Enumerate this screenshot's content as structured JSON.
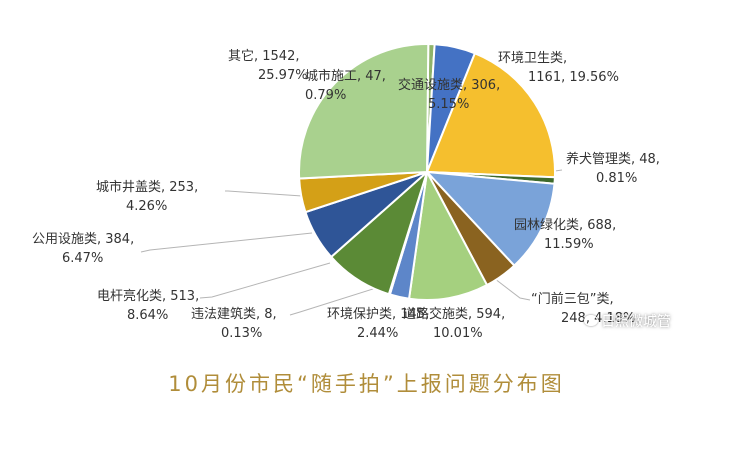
{
  "chart_data": {
    "type": "pie",
    "title": "10月份市民“随手拍”上报问题分布图",
    "slices": [
      {
        "name": "城市施工",
        "value": 47,
        "percent_label": "0.79%",
        "color": "#8fb36a"
      },
      {
        "name": "交通设施类",
        "value": 306,
        "percent_label": "5.15%",
        "color": "#4472c4"
      },
      {
        "name": "环境卫生类",
        "value": 1161,
        "percent_label": "19.56%",
        "color": "#f5bf2e"
      },
      {
        "name": "养犬管理类",
        "value": 48,
        "percent_label": "0.81%",
        "color": "#3f6a2b"
      },
      {
        "name": "园林绿化类",
        "value": 688,
        "percent_label": "11.59%",
        "color": "#7aa3d9"
      },
      {
        "name": "“门前三包”类",
        "value": 248,
        "percent_label": "4.18%",
        "color": "#8a6320"
      },
      {
        "name": "道路交施类",
        "value": 594,
        "percent_label": "10.01%",
        "color": "#a5d07f"
      },
      {
        "name": "环境保护类",
        "value": 145,
        "percent_label": "2.44%",
        "color": "#5d86c9"
      },
      {
        "name": "违法建筑类",
        "value": 8,
        "percent_label": "0.13%",
        "color": "#79a857"
      },
      {
        "name": "电杆亮化类",
        "value": 513,
        "percent_label": "8.64%",
        "color": "#5b8a36"
      },
      {
        "name": "公用设施类",
        "value": 384,
        "percent_label": "6.47%",
        "color": "#2f5597"
      },
      {
        "name": "城市井盖类",
        "value": 253,
        "percent_label": "4.26%",
        "color": "#d4a017"
      },
      {
        "name": "其它",
        "value": 1542,
        "percent_label": "25.97%",
        "color": "#a9d18e"
      }
    ],
    "labels": [
      {
        "line1": "城市施工, 47,",
        "line2": "0.79%"
      },
      {
        "line1": "交通设施类, 306,",
        "line2": "5.15%"
      },
      {
        "line1": "环境卫生类,",
        "line2": "1161, 19.56%"
      },
      {
        "line1": "养犬管理类, 48,",
        "line2": "0.81%"
      },
      {
        "line1": "园林绿化类, 688,",
        "line2": "11.59%"
      },
      {
        "line1": "“门前三包”类,",
        "line2": "248, 4.18%"
      },
      {
        "line1": "道路交施类, 594,",
        "line2": "10.01%"
      },
      {
        "line1": "环境保护类, 145,",
        "line2": "2.44%"
      },
      {
        "line1": "违法建筑类, 8,",
        "line2": "0.13%"
      },
      {
        "line1": "电杆亮化类, 513,",
        "line2": "8.64%"
      },
      {
        "line1": "公用设施类, 384,",
        "line2": "6.47%"
      },
      {
        "line1": "城市井盖类, 253,",
        "line2": "4.26%"
      },
      {
        "line1": "其它, 1542,",
        "line2": "25.97%"
      }
    ],
    "legend": "none"
  },
  "watermark": {
    "text": "日照微城管",
    "icon": "wechat-icon"
  }
}
